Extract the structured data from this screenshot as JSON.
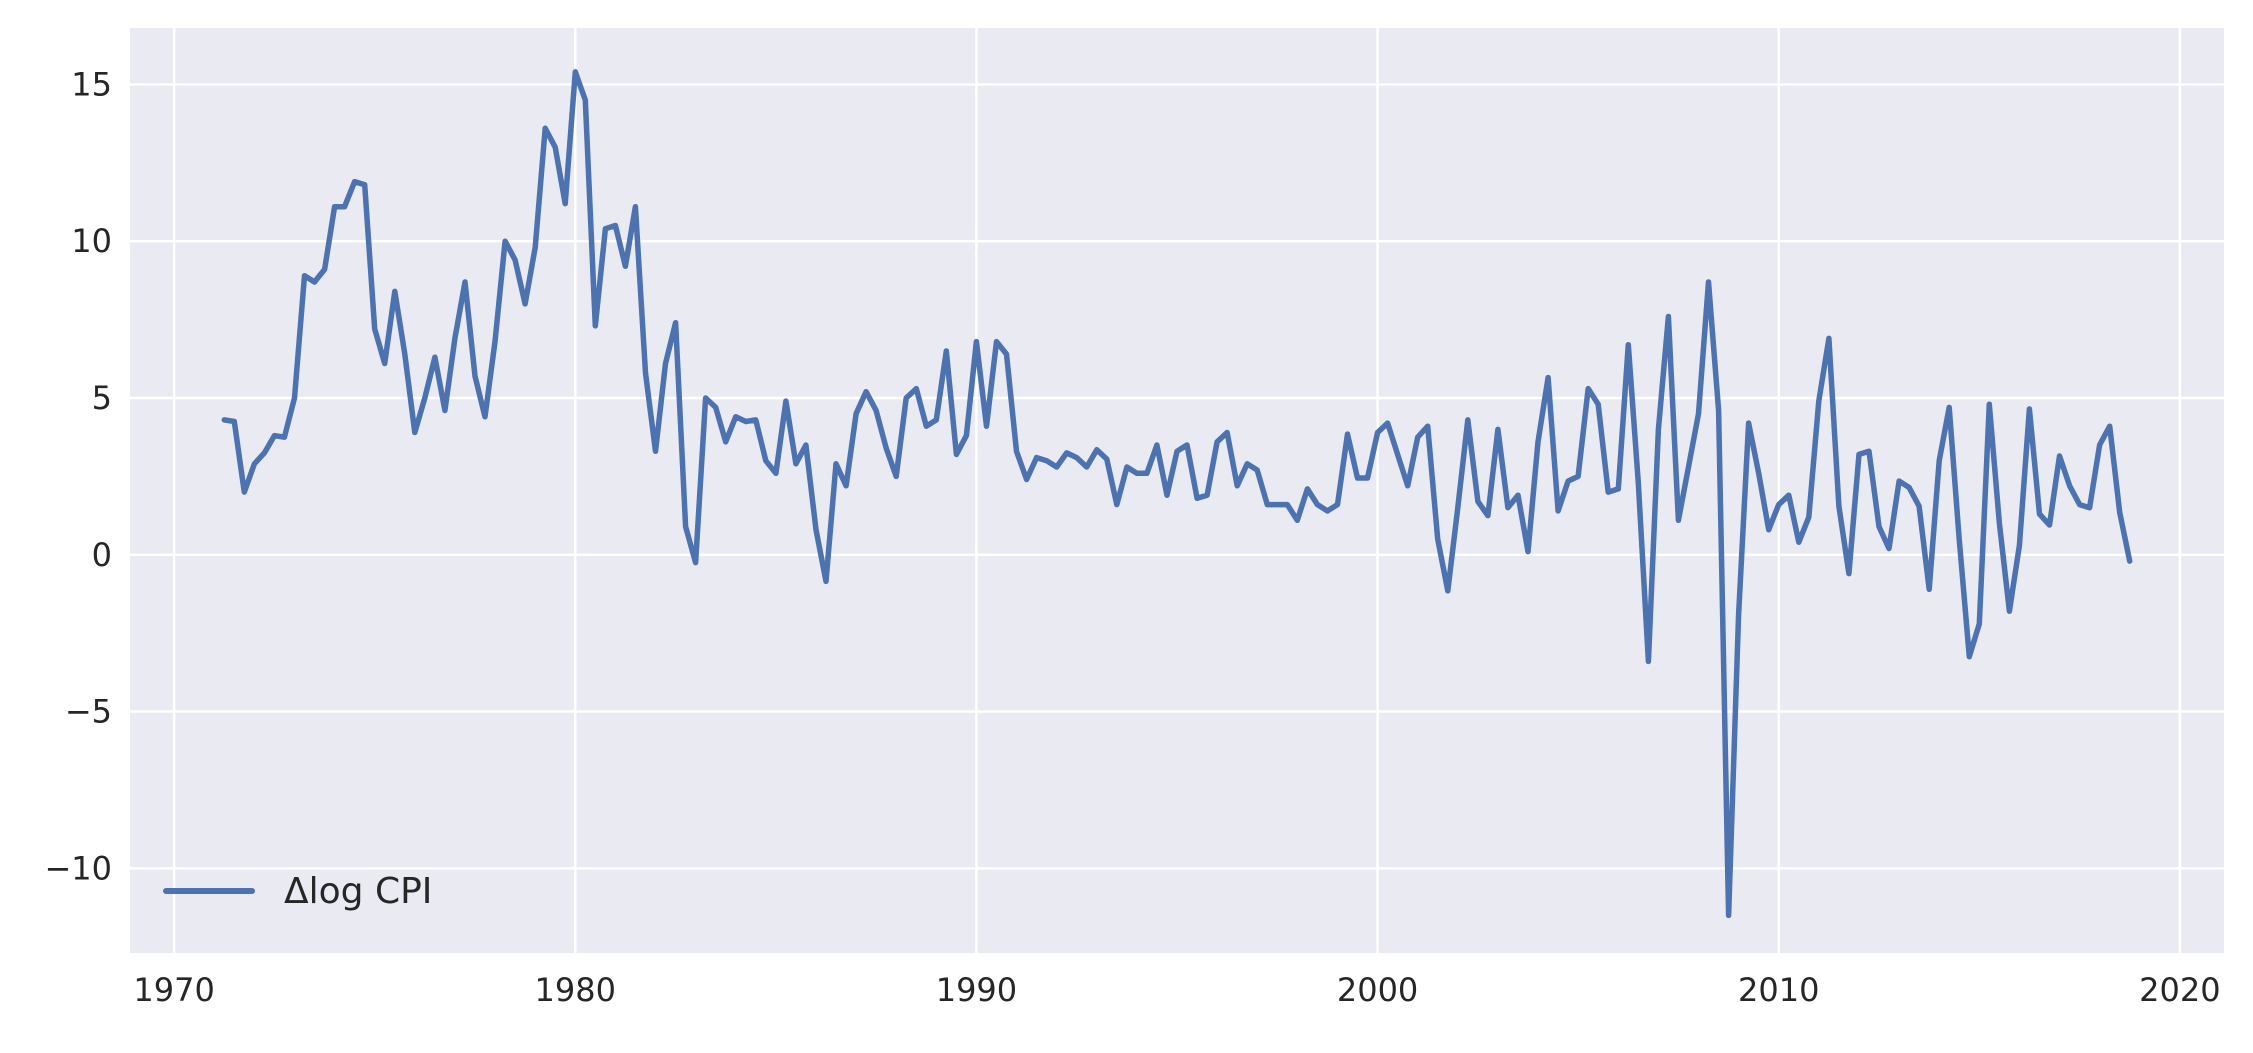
{
  "chart_data": {
    "type": "line",
    "title": "",
    "xlabel": "",
    "ylabel": "",
    "xlim": [
      1968.9,
      2021.1
    ],
    "ylim": [
      -12.7,
      16.8
    ],
    "x_ticks": [
      1970,
      1980,
      1990,
      2000,
      2010,
      2020
    ],
    "x_tick_labels": [
      "1970",
      "1980",
      "1990",
      "2000",
      "2010",
      "2020"
    ],
    "y_ticks": [
      -10,
      -5,
      0,
      5,
      10,
      15
    ],
    "y_tick_labels": [
      "−10",
      "−5",
      "0",
      "5",
      "10",
      "15"
    ],
    "grid": true,
    "legend": {
      "position": "bottom-left",
      "entries": [
        "Δlog CPI"
      ]
    },
    "colors": {
      "series": "#4c72b0",
      "background": "#eaeaf2",
      "grid": "#ffffff"
    },
    "series": [
      {
        "name": "Δlog CPI",
        "x": [
          1971.25,
          1971.5,
          1971.75,
          1972.0,
          1972.25,
          1972.5,
          1972.75,
          1973.0,
          1973.25,
          1973.5,
          1973.75,
          1974.0,
          1974.25,
          1974.5,
          1974.75,
          1975.0,
          1975.25,
          1975.5,
          1975.75,
          1976.0,
          1976.25,
          1976.5,
          1976.75,
          1977.0,
          1977.25,
          1977.5,
          1977.75,
          1978.0,
          1978.25,
          1978.5,
          1978.75,
          1979.0,
          1979.25,
          1979.5,
          1979.75,
          1980.0,
          1980.25,
          1980.5,
          1980.75,
          1981.0,
          1981.25,
          1981.5,
          1981.75,
          1982.0,
          1982.25,
          1982.5,
          1982.75,
          1983.0,
          1983.25,
          1983.5,
          1983.75,
          1984.0,
          1984.25,
          1984.5,
          1984.75,
          1985.0,
          1985.25,
          1985.5,
          1985.75,
          1986.0,
          1986.25,
          1986.5,
          1986.75,
          1987.0,
          1987.25,
          1987.5,
          1987.75,
          1988.0,
          1988.25,
          1988.5,
          1988.75,
          1989.0,
          1989.25,
          1989.5,
          1989.75,
          1990.0,
          1990.25,
          1990.5,
          1990.75,
          1991.0,
          1991.25,
          1991.5,
          1991.75,
          1992.0,
          1992.25,
          1992.5,
          1992.75,
          1993.0,
          1993.25,
          1993.5,
          1993.75,
          1994.0,
          1994.25,
          1994.5,
          1994.75,
          1995.0,
          1995.25,
          1995.5,
          1995.75,
          1996.0,
          1996.25,
          1996.5,
          1996.75,
          1997.0,
          1997.25,
          1997.5,
          1997.75,
          1998.0,
          1998.25,
          1998.5,
          1998.75,
          1999.0,
          1999.25,
          1999.5,
          1999.75,
          2000.0,
          2000.25,
          2000.5,
          2000.75,
          2001.0,
          2001.25,
          2001.5,
          2001.75,
          2002.0,
          2002.25,
          2002.5,
          2002.75,
          2003.0,
          2003.25,
          2003.5,
          2003.75,
          2004.0,
          2004.25,
          2004.5,
          2004.75,
          2005.0,
          2005.25,
          2005.5,
          2005.75,
          2006.0,
          2006.25,
          2006.5,
          2006.75,
          2007.0,
          2007.25,
          2007.5,
          2007.75,
          2008.0,
          2008.25,
          2008.5,
          2008.75,
          2009.0,
          2009.25,
          2009.5,
          2009.75,
          2010.0,
          2010.25,
          2010.5,
          2010.75,
          2011.0,
          2011.25,
          2011.5,
          2011.75,
          2012.0,
          2012.25,
          2012.5,
          2012.75,
          2013.0,
          2013.25,
          2013.5,
          2013.75,
          2014.0,
          2014.25,
          2014.5,
          2014.75,
          2015.0,
          2015.25,
          2015.5,
          2015.75,
          2016.0,
          2016.25,
          2016.5,
          2016.75,
          2017.0,
          2017.25,
          2017.5,
          2017.75,
          2018.0,
          2018.25,
          2018.5,
          2018.75
        ],
        "y": [
          4.3,
          4.25,
          2.0,
          2.9,
          3.25,
          3.8,
          3.75,
          5.0,
          8.9,
          8.7,
          9.1,
          11.1,
          11.1,
          11.9,
          11.8,
          7.2,
          6.1,
          8.4,
          6.4,
          3.9,
          5.0,
          6.3,
          4.6,
          6.9,
          8.7,
          5.7,
          4.4,
          6.8,
          10.0,
          9.4,
          8.0,
          9.8,
          13.6,
          13.0,
          11.2,
          15.4,
          14.5,
          7.3,
          10.4,
          10.5,
          9.2,
          11.1,
          5.8,
          3.3,
          6.1,
          7.4,
          0.9,
          -0.25,
          5.0,
          4.7,
          3.6,
          4.4,
          4.25,
          4.3,
          3.0,
          2.6,
          4.9,
          2.9,
          3.5,
          0.8,
          -0.85,
          2.9,
          2.2,
          4.5,
          5.2,
          4.6,
          3.4,
          2.5,
          5.0,
          5.3,
          4.1,
          4.3,
          6.5,
          3.2,
          3.8,
          6.8,
          4.1,
          6.8,
          6.4,
          3.3,
          2.4,
          3.1,
          3.0,
          2.8,
          3.25,
          3.1,
          2.8,
          3.35,
          3.05,
          1.6,
          2.8,
          2.6,
          2.6,
          3.5,
          1.9,
          3.3,
          3.5,
          1.8,
          1.9,
          3.6,
          3.9,
          2.2,
          2.9,
          2.7,
          1.6,
          1.6,
          1.6,
          1.1,
          2.1,
          1.6,
          1.4,
          1.6,
          3.85,
          2.45,
          2.45,
          3.9,
          4.2,
          3.2,
          2.2,
          3.75,
          4.1,
          0.5,
          -1.15,
          1.5,
          4.3,
          1.7,
          1.25,
          4.0,
          1.5,
          1.9,
          0.1,
          3.6,
          5.65,
          1.4,
          2.35,
          2.5,
          5.3,
          4.8,
          2.0,
          2.1,
          6.7,
          2.3,
          -3.4,
          4.0,
          7.6,
          1.1,
          2.8,
          4.5,
          8.7,
          4.6,
          -11.5,
          -1.9,
          4.2,
          2.6,
          0.8,
          1.6,
          1.9,
          0.4,
          1.2,
          4.9,
          6.9,
          1.55,
          -0.6,
          3.2,
          3.3,
          0.9,
          0.2,
          2.35,
          2.15,
          1.55,
          -1.1,
          3.0,
          4.7,
          0.5,
          -3.25,
          -2.2,
          4.8,
          1.0,
          -1.8,
          0.3,
          4.65,
          1.3,
          0.95,
          3.15,
          2.2,
          1.6,
          1.5,
          3.5,
          4.1,
          1.35,
          -0.2
        ]
      }
    ]
  }
}
